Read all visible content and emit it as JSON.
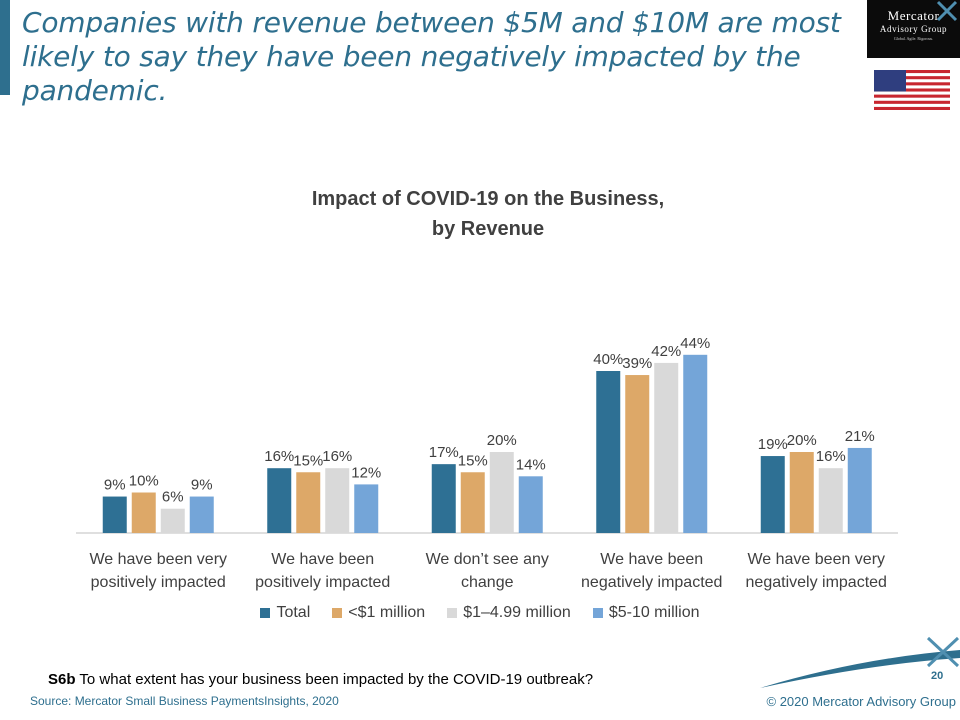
{
  "headline": "Companies with revenue between $5M and $10M are most likely to say they have been negatively impacted by the pandemic.",
  "logo": {
    "line1": "Mercator",
    "line2": "Advisory Group",
    "line3": "Global. Agile. Rigorous."
  },
  "flag_icon": "us-flag-icon",
  "chart_data": {
    "type": "bar",
    "title": "Impact of COVID-19 on the Business,",
    "subtitle": "by Revenue",
    "categories": [
      [
        "We have been very",
        "positively impacted"
      ],
      [
        "We have been",
        "positively impacted"
      ],
      [
        "We don’t see any",
        "change"
      ],
      [
        "We have been",
        "negatively impacted"
      ],
      [
        "We have been very",
        "negatively impacted"
      ]
    ],
    "series": [
      {
        "name": "Total",
        "color": "#2e7094",
        "values": [
          9,
          16,
          17,
          40,
          19
        ]
      },
      {
        "name": "<$1 million",
        "color": "#dda868",
        "values": [
          10,
          15,
          15,
          39,
          20
        ]
      },
      {
        "name": "$1–4.99 million",
        "color": "#d9d9d9",
        "values": [
          6,
          16,
          20,
          42,
          16
        ]
      },
      {
        "name": "$5-10 million",
        "color": "#74a5d8",
        "values": [
          9,
          12,
          14,
          44,
          21
        ]
      }
    ],
    "value_suffix": "%",
    "ylim": [
      0,
      50
    ],
    "grid": false,
    "legend_position": "bottom"
  },
  "footer": {
    "question_code": "S6b",
    "question_text": " To what extent has your business been impacted by the COVID-19 outbreak?",
    "source": "Source: Mercator Small Business PaymentsInsights, 2020",
    "copyright": "© 2020 Mercator Advisory Group",
    "page_number": "20"
  }
}
